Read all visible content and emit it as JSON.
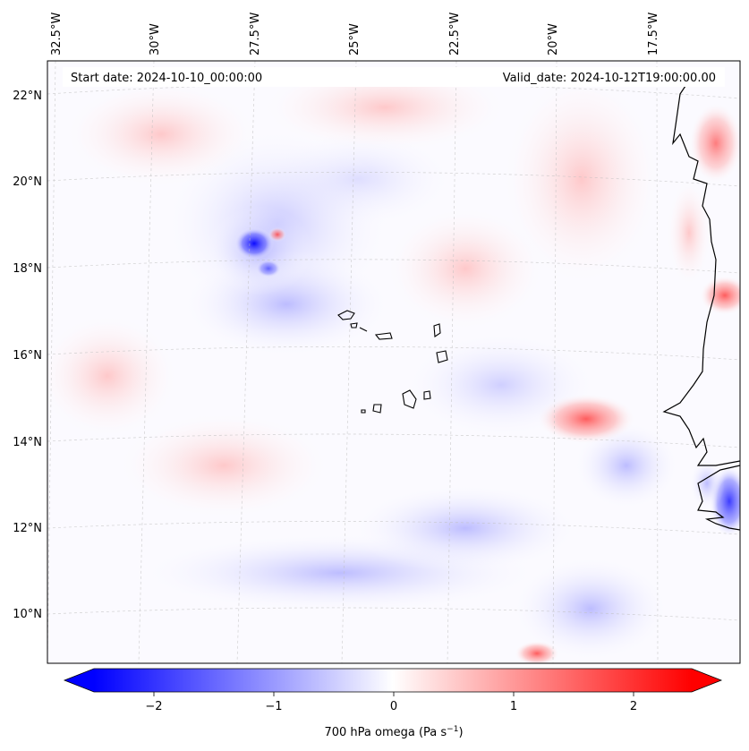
{
  "header": {
    "start_date": "Start date: 2024-10-10_00:00:00",
    "valid_date": "Valid_date: 2024-10-12T19:00:00.00"
  },
  "map": {
    "lon_labels": [
      "32.5°W",
      "30°W",
      "27.5°W",
      "25°W",
      "22.5°W",
      "20°W",
      "17.5°W"
    ],
    "lat_labels": [
      "22°N",
      "20°N",
      "18°N",
      "16°N",
      "14°N",
      "12°N",
      "10°N"
    ],
    "colors": {
      "negative": "#0000ff",
      "neutral": "#ffffff",
      "positive": "#ff0000",
      "coast": "#000000"
    }
  },
  "colorbar": {
    "ticks": [
      "−2",
      "−1",
      "0",
      "1",
      "2"
    ],
    "label": "700 hPa omega (Pa s",
    "label_sup": "−1",
    "label_end": ")"
  }
}
